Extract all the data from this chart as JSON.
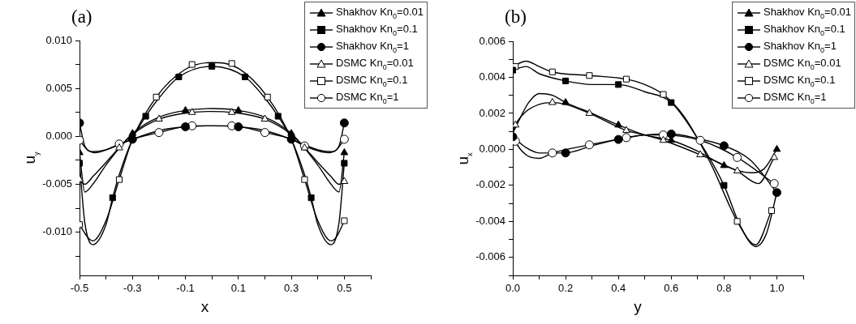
{
  "chart_data": [
    {
      "type": "line",
      "title": "(a)",
      "xlabel": "x",
      "ylabel": "u$_{y}$",
      "legend": "top right",
      "xlim": [
        -0.5,
        0.6
      ],
      "ylim": [
        -0.0145,
        0.01
      ],
      "xticks": [
        -0.5,
        {
          "value": -0.4,
          "label": null
        },
        -0.3,
        {
          "value": -0.2,
          "label": null
        },
        -0.1,
        {
          "value": 0,
          "label": null
        },
        0.1,
        {
          "value": 0.2,
          "label": null
        },
        0.3,
        {
          "value": 0.4,
          "label": null
        },
        0.5,
        {
          "value": 0.6,
          "label": null
        }
      ],
      "yticks": [
        {
          "value": -0.0125,
          "label": null
        },
        {
          "value": -0.01,
          "label": "-0.010"
        },
        {
          "value": -0.0075,
          "label": null
        },
        {
          "value": -0.005,
          "label": "-0.005"
        },
        {
          "value": -0.0025,
          "label": null
        },
        {
          "value": 0,
          "label": "0.000"
        },
        {
          "value": 0.0025,
          "label": null
        },
        {
          "value": 0.005,
          "label": "0.005"
        },
        {
          "value": 0.0075,
          "label": null
        },
        {
          "value": 0.01,
          "label": "0.010"
        }
      ],
      "series": [
        {
          "name": "Shakhov Kn$_{0}$=0.01",
          "type": "scatter",
          "marker": "triangle",
          "color": "#000000",
          "x": [
            -0.5,
            -0.3,
            -0.1,
            0.1,
            0.3,
            0.5
          ],
          "values": [
            -0.0017,
            0.0003,
            0.0027,
            0.0027,
            0.0003,
            -0.0017
          ]
        },
        {
          "name": "Shakhov Kn$_{0}$=0.1",
          "type": "scatter",
          "marker": "square",
          "color": "#000000",
          "x": [
            -0.5,
            -0.375,
            -0.25,
            -0.125,
            0,
            0.125,
            0.25,
            0.375,
            0.5
          ],
          "values": [
            -0.0028,
            -0.0064,
            0.0021,
            0.0062,
            0.0073,
            0.0062,
            0.0021,
            -0.0064,
            -0.0028
          ]
        },
        {
          "name": "Shakhov Kn$_{0}$=1",
          "type": "scatter",
          "marker": "circle",
          "color": "#000000",
          "x": [
            -0.5,
            -0.3,
            -0.1,
            0.1,
            0.3,
            0.5
          ],
          "values": [
            0.0014,
            -0.0003,
            0.001,
            0.001,
            -0.0003,
            0.0014
          ]
        },
        {
          "name": "DSMC Kn$_{0}$=0.01",
          "type": "scatter",
          "marker": "triangle",
          "color": "#ffffff",
          "x": [
            -0.5,
            -0.35,
            -0.2,
            -0.075,
            0.075,
            0.2,
            0.35,
            0.5
          ],
          "values": [
            -0.0045,
            -0.0012,
            0.0018,
            0.0025,
            0.0025,
            0.0018,
            -0.0012,
            -0.0047
          ]
        },
        {
          "name": "DSMC Kn$_{0}$=0.1",
          "type": "scatter",
          "marker": "square",
          "color": "#ffffff",
          "x": [
            -0.5,
            -0.35,
            -0.21,
            -0.075,
            0.075,
            0.21,
            0.35,
            0.5
          ],
          "values": [
            -0.0092,
            -0.0045,
            0.0041,
            0.0075,
            0.0076,
            0.0041,
            -0.0045,
            -0.0088
          ]
        },
        {
          "name": "DSMC Kn$_{0}$=1",
          "type": "scatter",
          "marker": "circle",
          "color": "#ffffff",
          "x": [
            -0.5,
            -0.35,
            -0.2,
            -0.075,
            0.075,
            0.2,
            0.35,
            0.5
          ],
          "values": [
            -0.0004,
            -0.0008,
            0.0004,
            0.0011,
            0.0011,
            0.0004,
            -0.001,
            -0.0003
          ]
        },
        {
          "type": "line",
          "marker": "none",
          "color": "#000000",
          "x": [
            -0.5,
            -0.48,
            -0.45,
            -0.4,
            -0.3,
            -0.2,
            -0.1,
            0,
            0.1,
            0.2,
            0.3,
            0.4,
            0.45,
            0.48,
            0.5
          ],
          "values": [
            -0.0017,
            -0.0058,
            -0.005,
            -0.003,
            0.0003,
            0.002,
            0.0027,
            0.0029,
            0.0027,
            0.002,
            0.0003,
            -0.003,
            -0.005,
            -0.0058,
            -0.0017
          ]
        },
        {
          "type": "line",
          "marker": "none",
          "color": "#000000",
          "x": [
            -0.5,
            -0.48,
            -0.45,
            -0.4,
            -0.375,
            -0.35,
            -0.3,
            -0.25,
            -0.2,
            -0.125,
            0,
            0.125,
            0.2,
            0.25,
            0.3,
            0.35,
            0.375,
            0.4,
            0.45,
            0.48,
            0.5
          ],
          "values": [
            -0.0028,
            -0.009,
            -0.0113,
            -0.0092,
            -0.0064,
            -0.004,
            -0.0003,
            0.0021,
            0.004,
            0.0062,
            0.0073,
            0.0062,
            0.004,
            0.0021,
            -0.0003,
            -0.004,
            -0.0064,
            -0.0092,
            -0.0113,
            -0.009,
            -0.0028
          ]
        },
        {
          "type": "line",
          "marker": "none",
          "color": "#000000",
          "x": [
            -0.5,
            -0.48,
            -0.45,
            -0.4,
            -0.3,
            -0.2,
            -0.1,
            0,
            0.1,
            0.2,
            0.3,
            0.4,
            0.45,
            0.48,
            0.5
          ],
          "values": [
            0.0014,
            -0.001,
            -0.0016,
            -0.0014,
            -0.0003,
            0.0006,
            0.001,
            0.0011,
            0.001,
            0.0006,
            -0.0003,
            -0.0014,
            -0.0016,
            -0.001,
            0.0014
          ]
        },
        {
          "type": "line",
          "marker": "none",
          "color": "#000000",
          "x": [
            -0.5,
            -0.48,
            -0.45,
            -0.35,
            -0.3,
            -0.2,
            -0.075,
            0,
            0.075,
            0.2,
            0.3,
            0.35,
            0.45,
            0.48,
            0.5
          ],
          "values": [
            -0.0045,
            -0.005,
            -0.0042,
            -0.0012,
            0.0002,
            0.0018,
            0.0025,
            0.0026,
            0.0025,
            0.0018,
            0.0002,
            -0.0012,
            -0.0042,
            -0.005,
            -0.0047
          ]
        },
        {
          "type": "line",
          "marker": "none",
          "color": "#000000",
          "x": [
            -0.5,
            -0.47,
            -0.45,
            -0.4,
            -0.35,
            -0.3,
            -0.21,
            -0.1,
            0,
            0.1,
            0.21,
            0.3,
            0.35,
            0.4,
            0.45,
            0.47,
            0.5
          ],
          "values": [
            -0.0092,
            -0.0105,
            -0.0109,
            -0.0088,
            -0.0045,
            -0.0003,
            0.0041,
            0.007,
            0.0077,
            0.0071,
            0.0041,
            -0.0003,
            -0.0045,
            -0.0088,
            -0.0109,
            -0.0105,
            -0.0088
          ]
        },
        {
          "type": "line",
          "marker": "none",
          "color": "#000000",
          "x": [
            -0.5,
            -0.47,
            -0.44,
            -0.35,
            -0.3,
            -0.2,
            -0.075,
            0,
            0.075,
            0.2,
            0.3,
            0.35,
            0.44,
            0.47,
            0.5
          ],
          "values": [
            -0.0004,
            -0.0014,
            -0.0017,
            -0.0008,
            -0.0003,
            0.0004,
            0.0011,
            0.0011,
            0.0011,
            0.0004,
            -0.0003,
            -0.001,
            -0.0017,
            -0.0014,
            -0.0003
          ]
        }
      ]
    },
    {
      "type": "line",
      "title": "(b)",
      "xlabel": "y",
      "ylabel": "u$_{x}$",
      "legend": "top right",
      "xlim": [
        0,
        1.1
      ],
      "ylim": [
        -0.007,
        0.006
      ],
      "xticks": [
        {
          "value": 0,
          "label": "0.0"
        },
        {
          "value": 0.1,
          "label": null
        },
        0.2,
        {
          "value": 0.3,
          "label": null
        },
        0.4,
        {
          "value": 0.5,
          "label": null
        },
        0.6,
        {
          "value": 0.7,
          "label": null
        },
        0.8,
        {
          "value": 0.9,
          "label": null
        },
        {
          "value": 1,
          "label": "1.0"
        },
        {
          "value": 1.1,
          "label": null
        }
      ],
      "yticks": [
        {
          "value": -0.007,
          "label": null
        },
        {
          "value": -0.006,
          "label": "-0.006"
        },
        {
          "value": -0.005,
          "label": null
        },
        {
          "value": -0.004,
          "label": "-0.004"
        },
        {
          "value": -0.003,
          "label": null
        },
        {
          "value": -0.002,
          "label": "-0.002"
        },
        {
          "value": -0.001,
          "label": null
        },
        {
          "value": 0,
          "label": "0.000"
        },
        {
          "value": 0.001,
          "label": null
        },
        {
          "value": 0.002,
          "label": "0.002"
        },
        {
          "value": 0.003,
          "label": null
        },
        {
          "value": 0.004,
          "label": "0.004"
        },
        {
          "value": 0.005,
          "label": null
        },
        {
          "value": 0.006,
          "label": "0.006"
        }
      ],
      "series": [
        {
          "name": "Shakhov Kn$_{0}$=0.01",
          "type": "scatter",
          "marker": "triangle",
          "color": "#000000",
          "x": [
            0.2,
            0.4,
            0.6,
            0.8,
            1.0
          ],
          "values": [
            0.0026,
            0.00135,
            0.0005,
            -0.0009,
            0
          ]
        },
        {
          "name": "Shakhov Kn$_{0}$=0.1",
          "type": "scatter",
          "marker": "square",
          "color": "#000000",
          "x": [
            0,
            0.2,
            0.4,
            0.6,
            0.8
          ],
          "values": [
            0.0044,
            0.0038,
            0.0036,
            0.0026,
            -0.002
          ]
        },
        {
          "name": "Shakhov Kn$_{0}$=1",
          "type": "scatter",
          "marker": "circle",
          "color": "#000000",
          "x": [
            0,
            0.2,
            0.4,
            0.6,
            0.8,
            1.0
          ],
          "values": [
            0.0007,
            -0.0002,
            0.00055,
            0.00085,
            0.0002,
            -0.0024
          ]
        },
        {
          "name": "DSMC Kn$_{0}$=0.01",
          "type": "scatter",
          "marker": "triangle",
          "color": "#ffffff",
          "x": [
            0.01,
            0.15,
            0.29,
            0.43,
            0.57,
            0.71,
            0.85,
            0.99
          ],
          "values": [
            0.00135,
            0.0026,
            0.002,
            0.00105,
            0.0005,
            -0.0003,
            -0.0012,
            -0.00045
          ]
        },
        {
          "name": "DSMC Kn$_{0}$=0.1",
          "type": "scatter",
          "marker": "square",
          "color": "#ffffff",
          "x": [
            0.01,
            0.15,
            0.29,
            0.43,
            0.57,
            0.85,
            0.98
          ],
          "values": [
            0.0046,
            0.0043,
            0.0041,
            0.0039,
            0.00305,
            -0.004,
            -0.0034
          ]
        },
        {
          "name": "DSMC Kn$_{0}$=1",
          "type": "scatter",
          "marker": "circle",
          "color": "#ffffff",
          "x": [
            0.01,
            0.15,
            0.29,
            0.43,
            0.57,
            0.71,
            0.85,
            0.99
          ],
          "values": [
            0.00045,
            -0.0002,
            0.00025,
            0.00065,
            0.0008,
            0.0005,
            -0.00045,
            -0.0019
          ]
        },
        {
          "type": "line",
          "marker": "none",
          "color": "#000000",
          "x": [
            0,
            0.03,
            0.06,
            0.1,
            0.15,
            0.2,
            0.3,
            0.4,
            0.5,
            0.6,
            0.7,
            0.8,
            0.9,
            0.95,
            1.0
          ],
          "values": [
            0.0009,
            0.0018,
            0.0026,
            0.0031,
            0.003,
            0.0026,
            0.002,
            0.00135,
            0.0008,
            0.0005,
            -0.0001,
            -0.0009,
            -0.0013,
            -0.0011,
            0
          ]
        },
        {
          "type": "line",
          "marker": "none",
          "color": "#000000",
          "x": [
            0,
            0.05,
            0.1,
            0.2,
            0.3,
            0.4,
            0.5,
            0.6,
            0.7,
            0.8,
            0.86,
            0.92,
            0.96,
            1.0
          ],
          "values": [
            0.0044,
            0.0046,
            0.0042,
            0.0038,
            0.0036,
            0.0036,
            0.0032,
            0.0026,
            0.0006,
            -0.002,
            -0.0042,
            -0.0054,
            -0.0047,
            -0.0024
          ]
        },
        {
          "type": "line",
          "marker": "none",
          "color": "#000000",
          "x": [
            0,
            0.05,
            0.1,
            0.2,
            0.3,
            0.4,
            0.5,
            0.6,
            0.7,
            0.8,
            0.9,
            1.0
          ],
          "values": [
            0.0007,
            0.0001,
            -0.0002,
            -0.0002,
            0.0002,
            0.00055,
            0.0008,
            0.00085,
            0.0006,
            0.0002,
            -0.0006,
            -0.0024
          ]
        },
        {
          "type": "line",
          "marker": "none",
          "color": "#000000",
          "x": [
            0,
            0.01,
            0.05,
            0.1,
            0.15,
            0.2,
            0.29,
            0.43,
            0.5,
            0.57,
            0.71,
            0.85,
            0.93,
            0.99
          ],
          "values": [
            0.0009,
            0.00135,
            0.0021,
            0.0025,
            0.0026,
            0.0025,
            0.002,
            0.00105,
            0.0008,
            0.0005,
            -0.0003,
            -0.0012,
            -0.0019,
            -0.00045
          ]
        },
        {
          "type": "line",
          "marker": "none",
          "color": "#000000",
          "x": [
            0,
            0.05,
            0.1,
            0.15,
            0.29,
            0.43,
            0.5,
            0.57,
            0.65,
            0.75,
            0.85,
            0.92,
            0.98
          ],
          "values": [
            0.0046,
            0.0049,
            0.0046,
            0.0043,
            0.0041,
            0.0039,
            0.0036,
            0.00305,
            0.0018,
            -0.0008,
            -0.004,
            -0.0053,
            -0.0034
          ]
        },
        {
          "type": "line",
          "marker": "none",
          "color": "#000000",
          "x": [
            0,
            0.01,
            0.05,
            0.1,
            0.15,
            0.29,
            0.43,
            0.5,
            0.57,
            0.71,
            0.85,
            0.99
          ],
          "values": [
            0.0009,
            0.00045,
            -0.0003,
            -0.0005,
            -0.0002,
            0.00025,
            0.00065,
            0.0008,
            0.0008,
            0.0005,
            -0.00045,
            -0.0019
          ]
        }
      ]
    }
  ]
}
